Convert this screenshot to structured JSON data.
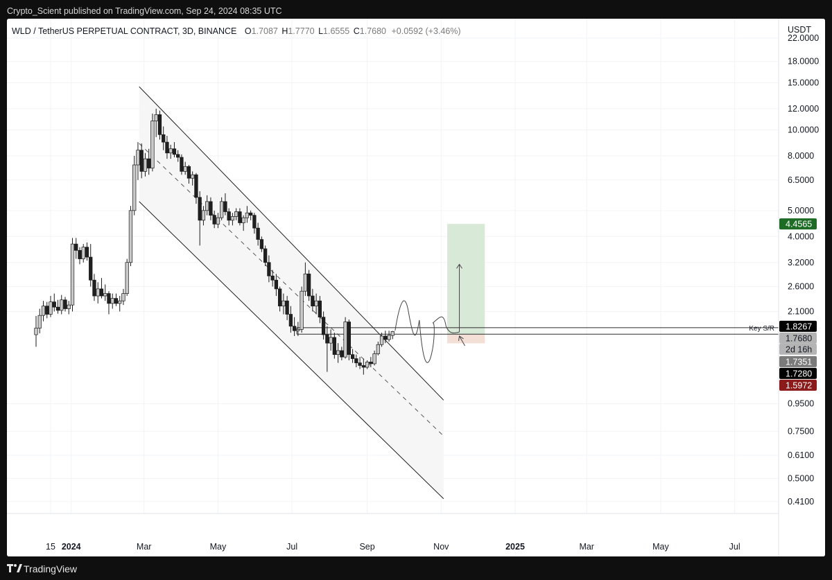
{
  "header": {
    "published_by": "Crypto_Scient published on TradingView.com, Sep 24, 2024 08:35 UTC"
  },
  "footer": {
    "brand": "TradingView"
  },
  "colors": {
    "up_candle": "#c9c9c9",
    "down_candle": "#202020",
    "target_zone": "#d9e9d7",
    "stop_zone": "#f3dfd6",
    "channel_fill": "#f6f6f6",
    "tag_green": "#1e6b25",
    "tag_red": "#8b1a1a",
    "tag_black": "#000000",
    "tag_gray": "#7a7a7a",
    "tag_lightgray": "#b4b4b4"
  },
  "chart_data": {
    "type": "candlestick",
    "symbol": "WLD / TetherUS PERPETUAL CONTRACT",
    "interval": "3D",
    "exchange": "BINANCE",
    "legend": {
      "title": "WLD / TetherUS PERPETUAL CONTRACT, 3D, BINANCE",
      "o_label": "O",
      "o": "1.7087",
      "h_label": "H",
      "h": "1.7770",
      "l_label": "L",
      "l": "1.6555",
      "c_label": "C",
      "c": "1.7680",
      "change": "+0.0592 (+3.46%)"
    },
    "currency_label": "USDT",
    "y_scale": "log",
    "y_range": [
      0.37,
      26
    ],
    "y_ticks": [
      "22.0000",
      "18.0000",
      "15.0000",
      "12.0000",
      "10.0000",
      "8.0000",
      "6.5000",
      "5.0000",
      "4.0000",
      "3.2000",
      "2.6000",
      "2.1000",
      "0.9500",
      "0.7500",
      "0.6100",
      "0.5000",
      "0.4100"
    ],
    "x_ticks": [
      "15",
      "2024",
      "Mar",
      "May",
      "Jul",
      "Sep",
      "Nov",
      "2025",
      "Mar",
      "May",
      "Jul"
    ],
    "price_tags": [
      {
        "value": "4.4565",
        "style": "green"
      },
      {
        "value": "1.8267",
        "style": "black"
      },
      {
        "value": "1.7680",
        "style": "lightgray"
      },
      {
        "value": "2d 16h",
        "style": "lightgray"
      },
      {
        "value": "1.7351",
        "style": "gray"
      },
      {
        "value": "1.7280",
        "style": "black"
      },
      {
        "value": "1.5972",
        "style": "red"
      }
    ],
    "key_level_label": "Key S/R",
    "key_levels": [
      1.8267,
      1.728
    ],
    "trade_setup": {
      "entry": 1.728,
      "target": 4.4565,
      "stop": 1.5972,
      "start_date": "2024-11-06",
      "end_date": "2024-12-07"
    },
    "channel": {
      "start_date": "2024-02-26",
      "end_date": "2024-11-03",
      "upper": [
        14.5,
        0.98
      ],
      "middle": [
        8.9,
        0.72
      ],
      "lower": [
        5.4,
        0.42
      ]
    },
    "candles": [
      {
        "date": "2023-12-03",
        "o": 1.72,
        "h": 2.02,
        "l": 1.55,
        "c": 1.82
      },
      {
        "date": "2023-12-06",
        "o": 1.82,
        "h": 2.15,
        "l": 1.74,
        "c": 2.03
      },
      {
        "date": "2023-12-09",
        "o": 2.03,
        "h": 2.3,
        "l": 1.93,
        "c": 2.2
      },
      {
        "date": "2023-12-12",
        "o": 2.2,
        "h": 2.28,
        "l": 1.98,
        "c": 2.05
      },
      {
        "date": "2023-12-15",
        "o": 2.05,
        "h": 2.4,
        "l": 2.0,
        "c": 2.28
      },
      {
        "date": "2023-12-18",
        "o": 2.28,
        "h": 2.45,
        "l": 2.1,
        "c": 2.18
      },
      {
        "date": "2023-12-21",
        "o": 2.18,
        "h": 2.32,
        "l": 2.06,
        "c": 2.12
      },
      {
        "date": "2023-12-24",
        "o": 2.12,
        "h": 2.42,
        "l": 2.05,
        "c": 2.32
      },
      {
        "date": "2023-12-27",
        "o": 2.32,
        "h": 2.38,
        "l": 2.1,
        "c": 2.15
      },
      {
        "date": "2023-12-30",
        "o": 2.15,
        "h": 2.3,
        "l": 2.05,
        "c": 2.22
      },
      {
        "date": "2024-01-02",
        "o": 2.22,
        "h": 3.95,
        "l": 2.1,
        "c": 3.75
      },
      {
        "date": "2024-01-05",
        "o": 3.75,
        "h": 3.95,
        "l": 3.3,
        "c": 3.55
      },
      {
        "date": "2024-01-08",
        "o": 3.55,
        "h": 3.65,
        "l": 3.15,
        "c": 3.3
      },
      {
        "date": "2024-01-11",
        "o": 3.3,
        "h": 3.75,
        "l": 3.2,
        "c": 3.65
      },
      {
        "date": "2024-01-14",
        "o": 3.65,
        "h": 3.8,
        "l": 3.25,
        "c": 3.35
      },
      {
        "date": "2024-01-17",
        "o": 3.35,
        "h": 3.75,
        "l": 2.6,
        "c": 2.75
      },
      {
        "date": "2024-01-20",
        "o": 2.75,
        "h": 2.9,
        "l": 2.3,
        "c": 2.4
      },
      {
        "date": "2024-01-23",
        "o": 2.4,
        "h": 2.7,
        "l": 2.25,
        "c": 2.55
      },
      {
        "date": "2024-01-26",
        "o": 2.55,
        "h": 2.8,
        "l": 2.35,
        "c": 2.4
      },
      {
        "date": "2024-01-29",
        "o": 2.4,
        "h": 2.65,
        "l": 2.3,
        "c": 2.45
      },
      {
        "date": "2024-02-01",
        "o": 2.45,
        "h": 2.5,
        "l": 2.05,
        "c": 2.25
      },
      {
        "date": "2024-02-04",
        "o": 2.25,
        "h": 2.45,
        "l": 2.15,
        "c": 2.35
      },
      {
        "date": "2024-02-07",
        "o": 2.35,
        "h": 2.45,
        "l": 2.2,
        "c": 2.25
      },
      {
        "date": "2024-02-10",
        "o": 2.25,
        "h": 2.4,
        "l": 2.1,
        "c": 2.3
      },
      {
        "date": "2024-02-13",
        "o": 2.3,
        "h": 2.55,
        "l": 2.22,
        "c": 2.45
      },
      {
        "date": "2024-02-16",
        "o": 2.45,
        "h": 3.3,
        "l": 2.4,
        "c": 3.2
      },
      {
        "date": "2024-02-19",
        "o": 3.2,
        "h": 5.2,
        "l": 3.1,
        "c": 5.0
      },
      {
        "date": "2024-02-22",
        "o": 5.0,
        "h": 8.0,
        "l": 4.8,
        "c": 7.4
      },
      {
        "date": "2024-02-25",
        "o": 7.4,
        "h": 9.0,
        "l": 6.5,
        "c": 8.4
      },
      {
        "date": "2024-02-28",
        "o": 8.4,
        "h": 8.9,
        "l": 6.6,
        "c": 7.0
      },
      {
        "date": "2024-03-02",
        "o": 7.0,
        "h": 8.2,
        "l": 6.7,
        "c": 7.8
      },
      {
        "date": "2024-03-05",
        "o": 7.8,
        "h": 8.5,
        "l": 6.8,
        "c": 7.2
      },
      {
        "date": "2024-03-08",
        "o": 7.2,
        "h": 11.5,
        "l": 7.0,
        "c": 10.8
      },
      {
        "date": "2024-03-11",
        "o": 10.8,
        "h": 12.0,
        "l": 9.4,
        "c": 11.4
      },
      {
        "date": "2024-03-14",
        "o": 11.4,
        "h": 11.8,
        "l": 9.2,
        "c": 9.6
      },
      {
        "date": "2024-03-17",
        "o": 9.6,
        "h": 10.3,
        "l": 8.4,
        "c": 9.0
      },
      {
        "date": "2024-03-20",
        "o": 9.0,
        "h": 9.5,
        "l": 7.8,
        "c": 8.2
      },
      {
        "date": "2024-03-23",
        "o": 8.2,
        "h": 8.8,
        "l": 7.8,
        "c": 8.5
      },
      {
        "date": "2024-03-26",
        "o": 8.5,
        "h": 9.0,
        "l": 7.9,
        "c": 8.1
      },
      {
        "date": "2024-03-29",
        "o": 8.1,
        "h": 8.4,
        "l": 7.6,
        "c": 7.9
      },
      {
        "date": "2024-04-01",
        "o": 7.9,
        "h": 8.1,
        "l": 6.8,
        "c": 7.0
      },
      {
        "date": "2024-04-04",
        "o": 7.0,
        "h": 7.6,
        "l": 6.8,
        "c": 7.3
      },
      {
        "date": "2024-04-07",
        "o": 7.3,
        "h": 7.4,
        "l": 6.3,
        "c": 6.6
      },
      {
        "date": "2024-04-10",
        "o": 6.6,
        "h": 7.0,
        "l": 6.2,
        "c": 6.8
      },
      {
        "date": "2024-04-13",
        "o": 6.8,
        "h": 6.9,
        "l": 5.3,
        "c": 5.6
      },
      {
        "date": "2024-04-16",
        "o": 5.6,
        "h": 5.9,
        "l": 3.7,
        "c": 4.6
      },
      {
        "date": "2024-04-19",
        "o": 4.6,
        "h": 5.2,
        "l": 4.4,
        "c": 5.0
      },
      {
        "date": "2024-04-22",
        "o": 5.0,
        "h": 5.7,
        "l": 4.8,
        "c": 5.4
      },
      {
        "date": "2024-04-25",
        "o": 5.4,
        "h": 5.6,
        "l": 4.6,
        "c": 4.8
      },
      {
        "date": "2024-04-28",
        "o": 4.8,
        "h": 5.0,
        "l": 4.3,
        "c": 4.45
      },
      {
        "date": "2024-05-01",
        "o": 4.45,
        "h": 4.9,
        "l": 4.3,
        "c": 4.7
      },
      {
        "date": "2024-05-04",
        "o": 4.7,
        "h": 5.6,
        "l": 4.6,
        "c": 5.4
      },
      {
        "date": "2024-05-07",
        "o": 5.4,
        "h": 5.8,
        "l": 4.8,
        "c": 4.95
      },
      {
        "date": "2024-05-10",
        "o": 4.95,
        "h": 5.1,
        "l": 4.4,
        "c": 4.6
      },
      {
        "date": "2024-05-13",
        "o": 4.6,
        "h": 4.9,
        "l": 4.4,
        "c": 4.75
      },
      {
        "date": "2024-05-16",
        "o": 4.75,
        "h": 5.1,
        "l": 4.6,
        "c": 4.95
      },
      {
        "date": "2024-05-19",
        "o": 4.95,
        "h": 5.1,
        "l": 4.4,
        "c": 4.5
      },
      {
        "date": "2024-05-22",
        "o": 4.5,
        "h": 4.8,
        "l": 4.2,
        "c": 4.7
      },
      {
        "date": "2024-05-25",
        "o": 4.7,
        "h": 5.2,
        "l": 4.5,
        "c": 4.9
      },
      {
        "date": "2024-05-28",
        "o": 4.9,
        "h": 5.0,
        "l": 4.6,
        "c": 4.8
      },
      {
        "date": "2024-05-31",
        "o": 4.8,
        "h": 4.9,
        "l": 4.1,
        "c": 4.3
      },
      {
        "date": "2024-06-03",
        "o": 4.3,
        "h": 4.5,
        "l": 3.7,
        "c": 3.9
      },
      {
        "date": "2024-06-06",
        "o": 3.9,
        "h": 4.0,
        "l": 3.5,
        "c": 3.6
      },
      {
        "date": "2024-06-09",
        "o": 3.6,
        "h": 3.7,
        "l": 3.1,
        "c": 3.2
      },
      {
        "date": "2024-06-12",
        "o": 3.2,
        "h": 3.4,
        "l": 2.7,
        "c": 2.85
      },
      {
        "date": "2024-06-15",
        "o": 2.85,
        "h": 3.0,
        "l": 2.6,
        "c": 2.75
      },
      {
        "date": "2024-06-18",
        "o": 2.75,
        "h": 2.9,
        "l": 2.4,
        "c": 2.55
      },
      {
        "date": "2024-06-21",
        "o": 2.55,
        "h": 2.6,
        "l": 2.1,
        "c": 2.2
      },
      {
        "date": "2024-06-24",
        "o": 2.2,
        "h": 2.45,
        "l": 2.05,
        "c": 2.3
      },
      {
        "date": "2024-06-27",
        "o": 2.3,
        "h": 2.4,
        "l": 1.95,
        "c": 2.05
      },
      {
        "date": "2024-06-30",
        "o": 2.05,
        "h": 2.2,
        "l": 1.75,
        "c": 1.85
      },
      {
        "date": "2024-07-03",
        "o": 1.85,
        "h": 2.0,
        "l": 1.7,
        "c": 1.78
      },
      {
        "date": "2024-07-06",
        "o": 1.78,
        "h": 1.92,
        "l": 1.7,
        "c": 1.8
      },
      {
        "date": "2024-07-09",
        "o": 1.8,
        "h": 2.6,
        "l": 1.75,
        "c": 2.5
      },
      {
        "date": "2024-07-12",
        "o": 2.5,
        "h": 3.2,
        "l": 2.4,
        "c": 2.9
      },
      {
        "date": "2024-07-15",
        "o": 2.9,
        "h": 3.0,
        "l": 2.3,
        "c": 2.4
      },
      {
        "date": "2024-07-18",
        "o": 2.4,
        "h": 2.55,
        "l": 2.1,
        "c": 2.2
      },
      {
        "date": "2024-07-21",
        "o": 2.2,
        "h": 2.45,
        "l": 2.05,
        "c": 2.3
      },
      {
        "date": "2024-07-24",
        "o": 2.3,
        "h": 2.4,
        "l": 1.9,
        "c": 2.0
      },
      {
        "date": "2024-07-27",
        "o": 2.0,
        "h": 2.1,
        "l": 1.65,
        "c": 1.72
      },
      {
        "date": "2024-07-30",
        "o": 1.72,
        "h": 1.85,
        "l": 1.25,
        "c": 1.6
      },
      {
        "date": "2024-08-02",
        "o": 1.6,
        "h": 1.8,
        "l": 1.5,
        "c": 1.68
      },
      {
        "date": "2024-08-05",
        "o": 1.68,
        "h": 1.75,
        "l": 1.4,
        "c": 1.45
      },
      {
        "date": "2024-08-08",
        "o": 1.45,
        "h": 1.6,
        "l": 1.35,
        "c": 1.5
      },
      {
        "date": "2024-08-11",
        "o": 1.5,
        "h": 1.55,
        "l": 1.38,
        "c": 1.42
      },
      {
        "date": "2024-08-14",
        "o": 1.42,
        "h": 2.0,
        "l": 1.4,
        "c": 1.92
      },
      {
        "date": "2024-08-17",
        "o": 1.92,
        "h": 1.96,
        "l": 1.38,
        "c": 1.45
      },
      {
        "date": "2024-08-20",
        "o": 1.45,
        "h": 1.52,
        "l": 1.35,
        "c": 1.4
      },
      {
        "date": "2024-08-23",
        "o": 1.4,
        "h": 1.45,
        "l": 1.3,
        "c": 1.35
      },
      {
        "date": "2024-08-26",
        "o": 1.35,
        "h": 1.42,
        "l": 1.28,
        "c": 1.32
      },
      {
        "date": "2024-08-29",
        "o": 1.32,
        "h": 1.4,
        "l": 1.22,
        "c": 1.3
      },
      {
        "date": "2024-09-01",
        "o": 1.3,
        "h": 1.38,
        "l": 1.28,
        "c": 1.36
      },
      {
        "date": "2024-09-04",
        "o": 1.36,
        "h": 1.42,
        "l": 1.3,
        "c": 1.34
      },
      {
        "date": "2024-09-07",
        "o": 1.34,
        "h": 1.5,
        "l": 1.32,
        "c": 1.46
      },
      {
        "date": "2024-09-10",
        "o": 1.46,
        "h": 1.62,
        "l": 1.44,
        "c": 1.58
      },
      {
        "date": "2024-09-13",
        "o": 1.58,
        "h": 1.75,
        "l": 1.55,
        "c": 1.7
      },
      {
        "date": "2024-09-16",
        "o": 1.7,
        "h": 1.78,
        "l": 1.6,
        "c": 1.65
      },
      {
        "date": "2024-09-19",
        "o": 1.65,
        "h": 1.78,
        "l": 1.62,
        "c": 1.71
      },
      {
        "date": "2024-09-22",
        "o": 1.7087,
        "h": 1.777,
        "l": 1.6555,
        "c": 1.768
      }
    ]
  }
}
